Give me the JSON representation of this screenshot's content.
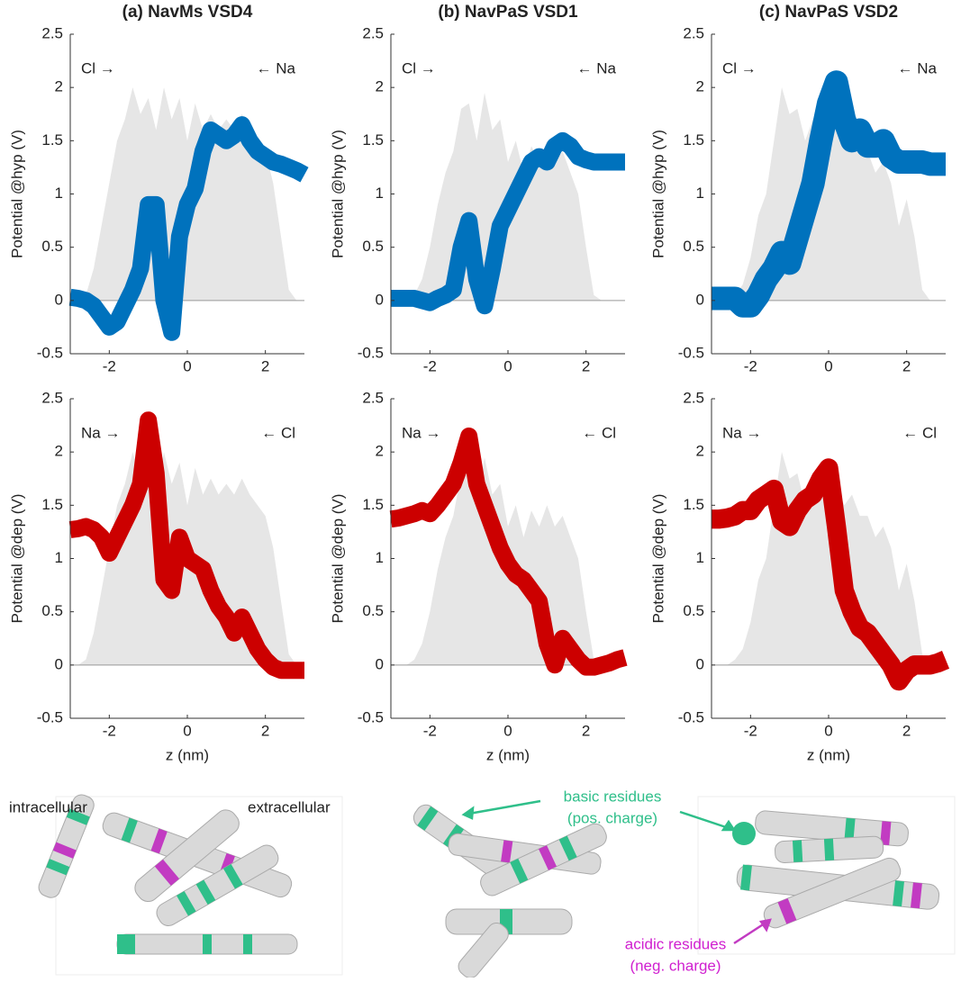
{
  "chart_data": [
    {
      "type": "band",
      "title": "(a) NavMs VSD4",
      "ylabel": "Potential @hyp (V)",
      "annotations": [
        "Cl →",
        "← Na"
      ],
      "color": "#0072bd",
      "density_color": "#e6e6e6",
      "band_halfwidth": 0.08,
      "x": [
        -3,
        -2.8,
        -2.6,
        -2.4,
        -2.2,
        -2,
        -1.8,
        -1.6,
        -1.4,
        -1.2,
        -1,
        -0.8,
        -0.6,
        -0.4,
        -0.2,
        0,
        0.2,
        0.4,
        0.6,
        0.8,
        1,
        1.2,
        1.4,
        1.6,
        1.8,
        2,
        2.2,
        2.4,
        2.6,
        2.8,
        3
      ],
      "values": [
        0.03,
        0.02,
        0,
        -0.05,
        -0.15,
        -0.25,
        -0.2,
        -0.05,
        0.1,
        0.3,
        0.9,
        0.9,
        0,
        -0.3,
        0.6,
        0.9,
        1.05,
        1.4,
        1.6,
        1.55,
        1.5,
        1.55,
        1.65,
        1.5,
        1.4,
        1.35,
        1.3,
        1.28,
        1.25,
        1.22,
        1.18
      ],
      "density": [
        0,
        0,
        0.05,
        0.3,
        0.7,
        1.1,
        1.5,
        1.7,
        2,
        1.75,
        1.9,
        1.6,
        2,
        1.7,
        1.9,
        1.5,
        1.85,
        1.6,
        1.75,
        1.6,
        1.7,
        1.6,
        1.75,
        1.6,
        1.5,
        1.4,
        1.1,
        0.6,
        0.1,
        0,
        0
      ],
      "xlim": [
        -3,
        3
      ],
      "ylim": [
        -0.5,
        2.5
      ],
      "xticks": [
        -2,
        0,
        2
      ],
      "yticks": [
        -0.5,
        0,
        0.5,
        1,
        1.5,
        2,
        2.5
      ]
    },
    {
      "type": "band",
      "title": "(b) NavPaS VSD1",
      "ylabel": "Potential @hyp (V)",
      "annotations": [
        "Cl →",
        "← Na"
      ],
      "color": "#0072bd",
      "density_color": "#e6e6e6",
      "band_halfwidth": 0.08,
      "x": [
        -3,
        -2.8,
        -2.6,
        -2.4,
        -2.2,
        -2,
        -1.8,
        -1.6,
        -1.4,
        -1.2,
        -1,
        -0.8,
        -0.6,
        -0.4,
        -0.2,
        0,
        0.2,
        0.4,
        0.6,
        0.8,
        1,
        1.2,
        1.4,
        1.6,
        1.8,
        2,
        2.2,
        2.4,
        2.6,
        2.8,
        3
      ],
      "values": [
        0.02,
        0.02,
        0.02,
        0.02,
        0,
        -0.02,
        0.02,
        0.05,
        0.1,
        0.5,
        0.75,
        0.2,
        -0.05,
        0.3,
        0.7,
        0.85,
        1.0,
        1.15,
        1.3,
        1.35,
        1.3,
        1.45,
        1.5,
        1.45,
        1.35,
        1.32,
        1.3,
        1.3,
        1.3,
        1.3,
        1.3
      ],
      "density": [
        0,
        0,
        0,
        0.05,
        0.2,
        0.5,
        0.9,
        1.2,
        1.4,
        1.8,
        1.85,
        1.5,
        1.95,
        1.6,
        1.7,
        1.3,
        1.5,
        1.2,
        1.45,
        1.3,
        1.5,
        1.3,
        1.4,
        1.2,
        1.0,
        0.5,
        0.05,
        0,
        0,
        0,
        0
      ],
      "xlim": [
        -3,
        3
      ],
      "ylim": [
        -0.5,
        2.5
      ],
      "xticks": [
        -2,
        0,
        2
      ],
      "yticks": [
        -0.5,
        0,
        0.5,
        1,
        1.5,
        2,
        2.5
      ]
    },
    {
      "type": "band",
      "title": "(c) NavPaS VSD2",
      "ylabel": "Potential @hyp (V)",
      "annotations": [
        "Cl →",
        "← Na"
      ],
      "color": "#0072bd",
      "density_color": "#e6e6e6",
      "band_halfwidth": 0.11,
      "x": [
        -3,
        -2.8,
        -2.6,
        -2.4,
        -2.2,
        -2,
        -1.8,
        -1.6,
        -1.4,
        -1.2,
        -1,
        -0.8,
        -0.6,
        -0.4,
        -0.2,
        0,
        0.2,
        0.4,
        0.6,
        0.8,
        1,
        1.2,
        1.4,
        1.6,
        1.8,
        2,
        2.2,
        2.4,
        2.6,
        2.8,
        3
      ],
      "values": [
        0.02,
        0.02,
        0.02,
        0.02,
        -0.05,
        -0.05,
        0.05,
        0.2,
        0.3,
        0.45,
        0.35,
        0.6,
        0.85,
        1.1,
        1.5,
        1.85,
        2.05,
        1.7,
        1.5,
        1.6,
        1.45,
        1.45,
        1.5,
        1.35,
        1.3,
        1.3,
        1.3,
        1.3,
        1.28,
        1.28,
        1.28
      ],
      "density": [
        0,
        0,
        0,
        0.05,
        0.15,
        0.4,
        0.8,
        1.0,
        1.5,
        2,
        1.75,
        1.8,
        1.5,
        1.7,
        1.8,
        1.6,
        1.7,
        1.5,
        1.6,
        1.4,
        1.4,
        1.2,
        1.3,
        1.1,
        0.7,
        0.95,
        0.6,
        0.1,
        0,
        0,
        0
      ],
      "xlim": [
        -3,
        3
      ],
      "ylim": [
        -0.5,
        2.5
      ],
      "xticks": [
        -2,
        0,
        2
      ],
      "yticks": [
        -0.5,
        0,
        0.5,
        1,
        1.5,
        2,
        2.5
      ]
    },
    {
      "type": "band",
      "ylabel": "Potential @dep (V)",
      "xlabel": "z (nm)",
      "annotations": [
        "Na →",
        "← Cl"
      ],
      "color": "#cc0000",
      "density_color": "#e6e6e6",
      "band_halfwidth": 0.08,
      "x": [
        -3,
        -2.8,
        -2.6,
        -2.4,
        -2.2,
        -2,
        -1.8,
        -1.6,
        -1.4,
        -1.2,
        -1,
        -0.8,
        -0.6,
        -0.4,
        -0.2,
        0,
        0.2,
        0.4,
        0.6,
        0.8,
        1,
        1.2,
        1.4,
        1.6,
        1.8,
        2,
        2.2,
        2.4,
        2.6,
        2.8,
        3
      ],
      "values": [
        1.27,
        1.28,
        1.3,
        1.27,
        1.2,
        1.05,
        1.2,
        1.35,
        1.5,
        1.7,
        2.3,
        1.8,
        0.8,
        0.7,
        1.2,
        1.0,
        0.95,
        0.9,
        0.7,
        0.55,
        0.45,
        0.3,
        0.45,
        0.3,
        0.15,
        0.05,
        -0.02,
        -0.05,
        -0.05,
        -0.05,
        -0.05
      ],
      "density": [
        0,
        0,
        0.05,
        0.3,
        0.7,
        1.1,
        1.5,
        1.7,
        2,
        1.75,
        1.9,
        1.6,
        2,
        1.7,
        1.9,
        1.5,
        1.85,
        1.6,
        1.75,
        1.6,
        1.7,
        1.6,
        1.75,
        1.6,
        1.5,
        1.4,
        1.1,
        0.6,
        0.1,
        0,
        0
      ],
      "xlim": [
        -3,
        3
      ],
      "ylim": [
        -0.5,
        2.5
      ],
      "xticks": [
        -2,
        0,
        2
      ],
      "yticks": [
        -0.5,
        0,
        0.5,
        1,
        1.5,
        2,
        2.5
      ]
    },
    {
      "type": "band",
      "ylabel": "Potential @dep (V)",
      "xlabel": "z (nm)",
      "annotations": [
        "Na →",
        "← Cl"
      ],
      "color": "#cc0000",
      "density_color": "#e6e6e6",
      "band_halfwidth": 0.08,
      "x": [
        -3,
        -2.8,
        -2.6,
        -2.4,
        -2.2,
        -2,
        -1.8,
        -1.6,
        -1.4,
        -1.2,
        -1,
        -0.8,
        -0.6,
        -0.4,
        -0.2,
        0,
        0.2,
        0.4,
        0.6,
        0.8,
        1,
        1.2,
        1.4,
        1.6,
        1.8,
        2,
        2.2,
        2.4,
        2.6,
        2.8,
        3
      ],
      "values": [
        1.37,
        1.38,
        1.4,
        1.42,
        1.45,
        1.42,
        1.5,
        1.6,
        1.7,
        1.9,
        2.15,
        1.7,
        1.5,
        1.3,
        1.1,
        0.95,
        0.85,
        0.8,
        0.7,
        0.6,
        0.2,
        0,
        0.25,
        0.15,
        0.05,
        -0.02,
        -0.02,
        0,
        0.02,
        0.05,
        0.07
      ],
      "density": [
        0,
        0,
        0,
        0.05,
        0.2,
        0.5,
        0.9,
        1.2,
        1.4,
        1.8,
        1.85,
        1.5,
        1.95,
        1.6,
        1.7,
        1.3,
        1.5,
        1.2,
        1.45,
        1.3,
        1.5,
        1.3,
        1.4,
        1.2,
        1.0,
        0.5,
        0.05,
        0,
        0,
        0,
        0
      ],
      "xlim": [
        -3,
        3
      ],
      "ylim": [
        -0.5,
        2.5
      ],
      "xticks": [
        -2,
        0,
        2
      ],
      "yticks": [
        -0.5,
        0,
        0.5,
        1,
        1.5,
        2,
        2.5
      ]
    },
    {
      "type": "band",
      "ylabel": "Potential @dep (V)",
      "xlabel": "z (nm)",
      "annotations": [
        "Na →",
        "← Cl"
      ],
      "color": "#cc0000",
      "density_color": "#e6e6e6",
      "band_halfwidth": 0.09,
      "x": [
        -3,
        -2.8,
        -2.6,
        -2.4,
        -2.2,
        -2,
        -1.8,
        -1.6,
        -1.4,
        -1.2,
        -1,
        -0.8,
        -0.6,
        -0.4,
        -0.2,
        0,
        0.2,
        0.4,
        0.6,
        0.8,
        1,
        1.2,
        1.4,
        1.6,
        1.8,
        2,
        2.2,
        2.4,
        2.6,
        2.8,
        3
      ],
      "values": [
        1.37,
        1.37,
        1.38,
        1.4,
        1.45,
        1.45,
        1.55,
        1.6,
        1.65,
        1.35,
        1.3,
        1.45,
        1.55,
        1.6,
        1.75,
        1.85,
        1.3,
        0.7,
        0.5,
        0.35,
        0.3,
        0.2,
        0.1,
        0,
        -0.15,
        -0.05,
        0,
        0,
        0,
        0.02,
        0.05
      ],
      "density": [
        0,
        0,
        0,
        0.05,
        0.15,
        0.4,
        0.8,
        1.0,
        1.5,
        2,
        1.75,
        1.8,
        1.5,
        1.7,
        1.8,
        1.6,
        1.7,
        1.5,
        1.6,
        1.4,
        1.4,
        1.2,
        1.3,
        1.1,
        0.7,
        0.95,
        0.6,
        0.1,
        0,
        0,
        0
      ],
      "xlim": [
        -3,
        3
      ],
      "ylim": [
        -0.5,
        2.5
      ],
      "xticks": [
        -2,
        0,
        2
      ],
      "yticks": [
        -0.5,
        0,
        0.5,
        1,
        1.5,
        2,
        2.5
      ]
    }
  ],
  "structure_labels": {
    "intracellular": "intracellular",
    "extracellular": "extracellular",
    "basic": "basic residues",
    "basic_note": "(pos. charge)",
    "acidic": "acidic residues",
    "acidic_note": "(neg. charge)"
  }
}
